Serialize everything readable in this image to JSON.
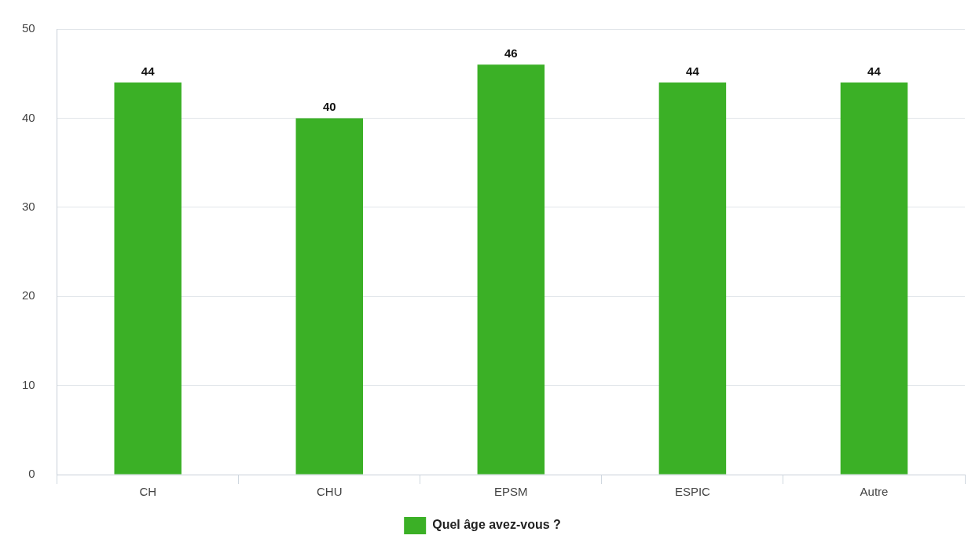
{
  "chart_data": {
    "type": "bar",
    "categories": [
      "CH",
      "CHU",
      "EPSM",
      "ESPIC",
      "Autre"
    ],
    "series": [
      {
        "name": "Quel âge avez-vous ?",
        "color": "#3bb026",
        "values": [
          44,
          40,
          46,
          44,
          44
        ]
      }
    ],
    "ylim": [
      0,
      50
    ],
    "yticks": [
      0,
      10,
      20,
      30,
      40,
      50
    ],
    "grid": "y",
    "legend": "bottom",
    "data_labels": true
  }
}
